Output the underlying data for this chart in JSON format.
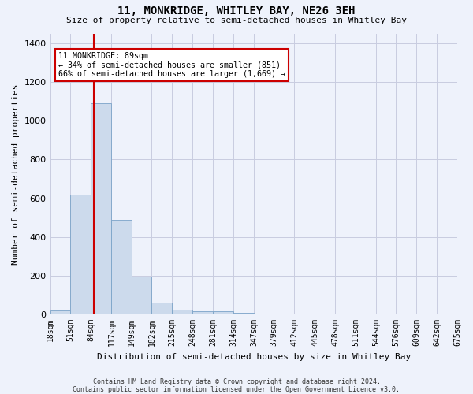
{
  "title": "11, MONKRIDGE, WHITLEY BAY, NE26 3EH",
  "subtitle": "Size of property relative to semi-detached houses in Whitley Bay",
  "xlabel": "Distribution of semi-detached houses by size in Whitley Bay",
  "ylabel": "Number of semi-detached properties",
  "footer_line1": "Contains HM Land Registry data © Crown copyright and database right 2024.",
  "footer_line2": "Contains public sector information licensed under the Open Government Licence v3.0.",
  "annotation_line1": "11 MONKRIDGE: 89sqm",
  "annotation_line2": "← 34% of semi-detached houses are smaller (851)",
  "annotation_line3": "66% of semi-detached houses are larger (1,669) →",
  "property_size": 89,
  "bin_edges": [
    18,
    51,
    84,
    117,
    149,
    182,
    215,
    248,
    281,
    314,
    347,
    379,
    412,
    445,
    478,
    511,
    544,
    576,
    609,
    642,
    675
  ],
  "bar_heights": [
    20,
    620,
    1090,
    490,
    195,
    62,
    25,
    15,
    15,
    10,
    3,
    2,
    1,
    0,
    0,
    0,
    0,
    0,
    0,
    0
  ],
  "bar_color": "#ccdaec",
  "bar_edge_color": "#7ba3c8",
  "red_line_color": "#cc0000",
  "background_color": "#eef2fb",
  "grid_color": "#c8cce0",
  "ylim": [
    0,
    1450
  ],
  "yticks": [
    0,
    200,
    400,
    600,
    800,
    1000,
    1200,
    1400
  ],
  "title_fontsize": 10,
  "subtitle_fontsize": 8,
  "ylabel_fontsize": 8,
  "xlabel_fontsize": 8,
  "tick_fontsize": 7,
  "footer_fontsize": 6
}
